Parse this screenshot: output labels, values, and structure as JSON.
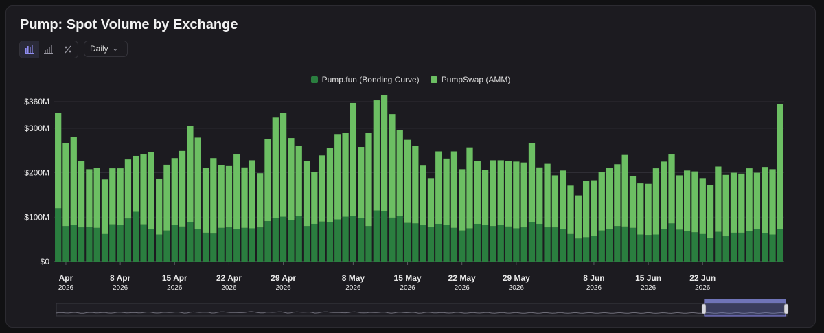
{
  "title": "Pump: Spot Volume by Exchange",
  "toolbar": {
    "buttons": [
      {
        "icon": "grouped-bar-chart-icon"
      },
      {
        "icon": "stacked-bar-chart-icon"
      },
      {
        "icon": "percent-icon"
      }
    ],
    "interval_selected": "Daily"
  },
  "colors": {
    "bonding_curve": "#2a7e3f",
    "amm": "#6cbf63"
  },
  "chart_data": {
    "type": "bar",
    "stacked": true,
    "series": [
      {
        "name": "Pump.fun (Bonding Curve)",
        "values": [
          120,
          80,
          83,
          77,
          78,
          76,
          62,
          84,
          82,
          97,
          112,
          84,
          73,
          61,
          70,
          82,
          79,
          89,
          74,
          65,
          63,
          76,
          77,
          74,
          76,
          75,
          77,
          91,
          98,
          101,
          94,
          103,
          80,
          85,
          90,
          89,
          95,
          101,
          103,
          98,
          80,
          115,
          114,
          99,
          102,
          87,
          86,
          82,
          78,
          85,
          82,
          76,
          70,
          75,
          85,
          82,
          80,
          82,
          79,
          75,
          77,
          89,
          85,
          77,
          77,
          73,
          62,
          52,
          55,
          58,
          70,
          73,
          80,
          79,
          76,
          61,
          60,
          61,
          74,
          86,
          72,
          69,
          66,
          62,
          54,
          67,
          57,
          65,
          65,
          68,
          73,
          64,
          61,
          73
        ]
      },
      {
        "name": "PumpSwap (AMM)",
        "values": [
          215,
          187,
          198,
          150,
          130,
          135,
          123,
          126,
          128,
          133,
          126,
          157,
          173,
          126,
          148,
          151,
          170,
          216,
          205,
          146,
          170,
          141,
          138,
          167,
          136,
          153,
          122,
          185,
          226,
          234,
          184,
          157,
          146,
          116,
          149,
          167,
          192,
          188,
          254,
          160,
          210,
          248,
          260,
          233,
          194,
          187,
          174,
          134,
          110,
          163,
          150,
          172,
          138,
          182,
          142,
          125,
          148,
          146,
          147,
          150,
          146,
          178,
          127,
          143,
          117,
          132,
          109,
          97,
          126,
          125,
          132,
          138,
          139,
          161,
          117,
          115,
          115,
          149,
          151,
          155,
          122,
          136,
          137,
          126,
          118,
          147,
          138,
          135,
          133,
          142,
          127,
          149,
          147,
          281
        ]
      },
      {
        "name": "",
        "values": []
      }
    ],
    "x_tick_labels": [
      {
        "label": "Apr",
        "year": "2026",
        "day_index": 1
      },
      {
        "label": "8 Apr",
        "year": "2026",
        "day_index": 8
      },
      {
        "label": "15 Apr",
        "year": "2026",
        "day_index": 15
      },
      {
        "label": "22 Apr",
        "year": "2026",
        "day_index": 22
      },
      {
        "label": "29 Apr",
        "year": "2026",
        "day_index": 29
      },
      {
        "label": "8 May",
        "year": "2026",
        "day_index": 38
      },
      {
        "label": "15 May",
        "year": "2026",
        "day_index": 45
      },
      {
        "label": "22 May",
        "year": "2026",
        "day_index": 52
      },
      {
        "label": "29 May",
        "year": "2026",
        "day_index": 59
      },
      {
        "label": "8 Jun",
        "year": "2026",
        "day_index": 69
      },
      {
        "label": "15 Jun",
        "year": "2026",
        "day_index": 76
      },
      {
        "label": "22 Jun",
        "year": "2026",
        "day_index": 83
      }
    ],
    "y_ticks": [
      {
        "value": 0,
        "label": "$0"
      },
      {
        "value": 100,
        "label": "$100M"
      },
      {
        "value": 200,
        "label": "$200M"
      },
      {
        "value": 300,
        "label": "$300M"
      },
      {
        "value": 360,
        "label": "$360M"
      }
    ],
    "ylim": [
      0,
      360
    ],
    "grid": true,
    "legend_position": "top-center"
  }
}
